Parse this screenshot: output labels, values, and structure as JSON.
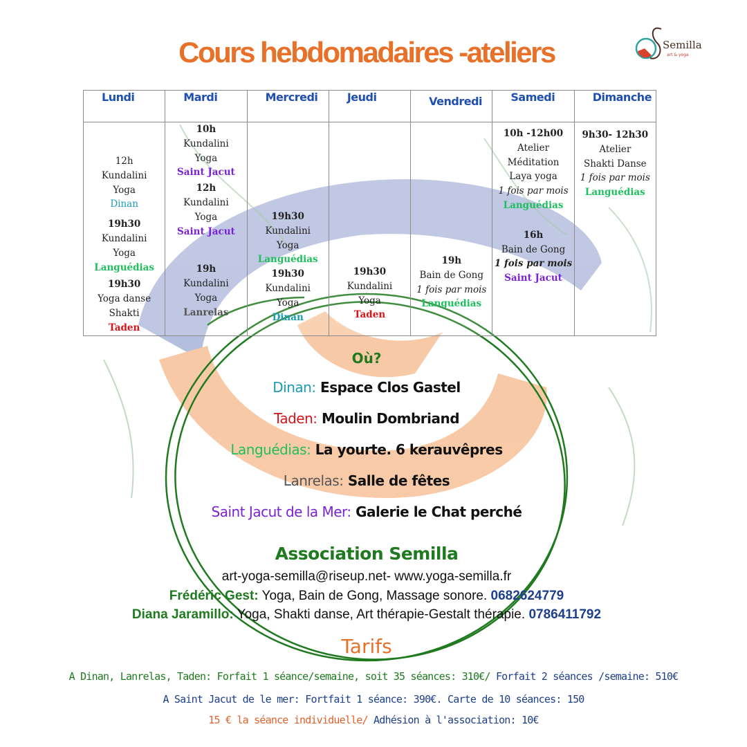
{
  "title": "Cours hebdomadaires -ateliers",
  "logo": {
    "word": "Semilla",
    "sub": "art & yoga"
  },
  "colors": {
    "title": "#e8712a",
    "day_header": "#1f4fb0",
    "Dinan": "#1a9bb5",
    "Taden": "#d7141a",
    "Languédias": "#1fbf5e",
    "Lanrelas": "#555555",
    "Saint Jacut": "#7b22d6",
    "association": "#1f7a1f",
    "phone": "#1e3f8a"
  },
  "schedule": [
    {
      "day": "Lundi",
      "blocks": [
        [
          {
            "t": "12h",
            "s": "txt"
          },
          {
            "t": "Kundalini",
            "s": "txt"
          },
          {
            "t": "Yoga",
            "s": "txt"
          },
          {
            "t": "Dinan",
            "s": "loc-plain",
            "loc": "Dinan"
          }
        ],
        [
          {
            "t": "19h30",
            "s": "time"
          },
          {
            "t": "Kundalini",
            "s": "txt"
          },
          {
            "t": "Yoga",
            "s": "txt"
          },
          {
            "t": "Languédias",
            "s": "loc",
            "loc": "Languédias"
          }
        ],
        [
          {
            "t": "19h30",
            "s": "time"
          },
          {
            "t": "Yoga danse",
            "s": "txt"
          },
          {
            "t": "Shakti",
            "s": "txt"
          },
          {
            "t": "Taden",
            "s": "loc",
            "loc": "Taden"
          }
        ]
      ]
    },
    {
      "day": "Mardi",
      "blocks": [
        [
          {
            "t": "10h",
            "s": "time"
          },
          {
            "t": "Kundalini",
            "s": "txt"
          },
          {
            "t": "Yoga",
            "s": "txt"
          },
          {
            "t": "Saint Jacut",
            "s": "loc",
            "loc": "Saint Jacut"
          }
        ],
        [
          {
            "t": "12h",
            "s": "time"
          },
          {
            "t": "Kundalini",
            "s": "txt"
          },
          {
            "t": "Yoga",
            "s": "txt"
          },
          {
            "t": "Saint Jacut",
            "s": "loc",
            "loc": "Saint Jacut"
          }
        ],
        [
          {
            "t": "19h",
            "s": "time"
          },
          {
            "t": "Kundalini",
            "s": "txt"
          },
          {
            "t": "Yoga",
            "s": "txt"
          },
          {
            "t": "Lanrelas",
            "s": "loc",
            "loc": "Lanrelas"
          }
        ]
      ]
    },
    {
      "day": "Mercredi",
      "blocks": [
        [
          {
            "t": "19h30",
            "s": "time"
          },
          {
            "t": "Kundalini",
            "s": "txt"
          },
          {
            "t": "Yoga",
            "s": "txt"
          },
          {
            "t": "Languédias",
            "s": "loc",
            "loc": "Languédias"
          }
        ],
        [
          {
            "t": "19h30",
            "s": "time"
          },
          {
            "t": "Kundalini",
            "s": "txt"
          },
          {
            "t": "Yoga",
            "s": "txt"
          },
          {
            "t": "Dinan",
            "s": "loc",
            "loc": "Dinan"
          }
        ]
      ]
    },
    {
      "day": "Jeudi",
      "blocks": [
        [
          {
            "t": "19h30",
            "s": "time"
          },
          {
            "t": "Kundalini",
            "s": "txt"
          },
          {
            "t": "Yoga",
            "s": "txt"
          },
          {
            "t": "Taden",
            "s": "loc",
            "loc": "Taden"
          }
        ]
      ]
    },
    {
      "day": "Vendredi",
      "blocks": [
        [
          {
            "t": "19h",
            "s": "time"
          },
          {
            "t": "Bain de Gong",
            "s": "txt"
          },
          {
            "t": "1 fois par mois",
            "s": "it"
          },
          {
            "t": "Languédias",
            "s": "loc",
            "loc": "Languédias"
          }
        ]
      ]
    },
    {
      "day": "Samedi",
      "blocks": [
        [
          {
            "t": "10h -12h00",
            "s": "time"
          },
          {
            "t": "Atelier",
            "s": "txt"
          },
          {
            "t": "Méditation",
            "s": "txt"
          },
          {
            "t": "Laya yoga",
            "s": "txt"
          },
          {
            "t": "1 fois par mois",
            "s": "it"
          },
          {
            "t": "Languédias",
            "s": "loc",
            "loc": "Languédias"
          }
        ],
        [
          {
            "t": "16h",
            "s": "time"
          },
          {
            "t": "Bain de Gong",
            "s": "txt"
          },
          {
            "t": "1 fois par mois",
            "s": "itb"
          },
          {
            "t": "Saint Jacut",
            "s": "loc",
            "loc": "Saint Jacut"
          }
        ]
      ]
    },
    {
      "day": "Dimanche",
      "blocks": [
        [
          {
            "t": "9h30- 12h30",
            "s": "time"
          },
          {
            "t": "Atelier",
            "s": "txt"
          },
          {
            "t": "Shakti Danse",
            "s": "txt"
          },
          {
            "t": "1 fois par mois",
            "s": "it"
          },
          {
            "t": "Languédias",
            "s": "loc",
            "loc": "Languédias"
          }
        ]
      ]
    }
  ],
  "where": {
    "heading": "Où?",
    "places": [
      {
        "name": "Dinan:",
        "key": "Dinan",
        "place": "Espace Clos Gastel"
      },
      {
        "name": "Taden:",
        "key": "Taden",
        "place": "Moulin Dombriand"
      },
      {
        "name": "Languédias:",
        "key": "Languédias",
        "place": "La yourte. 6 kerauvêpres"
      },
      {
        "name": "Lanrelas:",
        "key": "Lanrelas",
        "place": "Salle de fêtes"
      },
      {
        "name": "Saint Jacut de la Mer:",
        "key": "Saint Jacut",
        "place": "Galerie le  Chat perché"
      }
    ]
  },
  "association": {
    "title": "Association Semilla",
    "contact": "art-yoga-semilla@riseup.net- www.yoga-semilla.fr",
    "people": [
      {
        "name": "Frédéric Gest:",
        "desc": " Yoga, Bain de Gong, Massage sonore. ",
        "phone": "0682624779"
      },
      {
        "name": "Diana Jaramillo:",
        "desc": "  Yoga, Shakti danse, Art thérapie-Gestalt thérapie. ",
        "phone": "0786411792"
      }
    ]
  },
  "tarifs": {
    "title": "Tarifs",
    "line1a": "A Dinan, Lanrelas, Taden:  Forfait  1 séance/semaine, soit 35 séances: 310€/ ",
    "line1b": "Forfait 2 séances /semaine: 510€",
    "line2": "A Saint Jacut de le mer: Fortfait 1 séance: 390€. Carte de 10 séances: 150",
    "line3a": "15 € la séance individuelle/ ",
    "line3b": "Adhésion à l'association: 10€"
  }
}
